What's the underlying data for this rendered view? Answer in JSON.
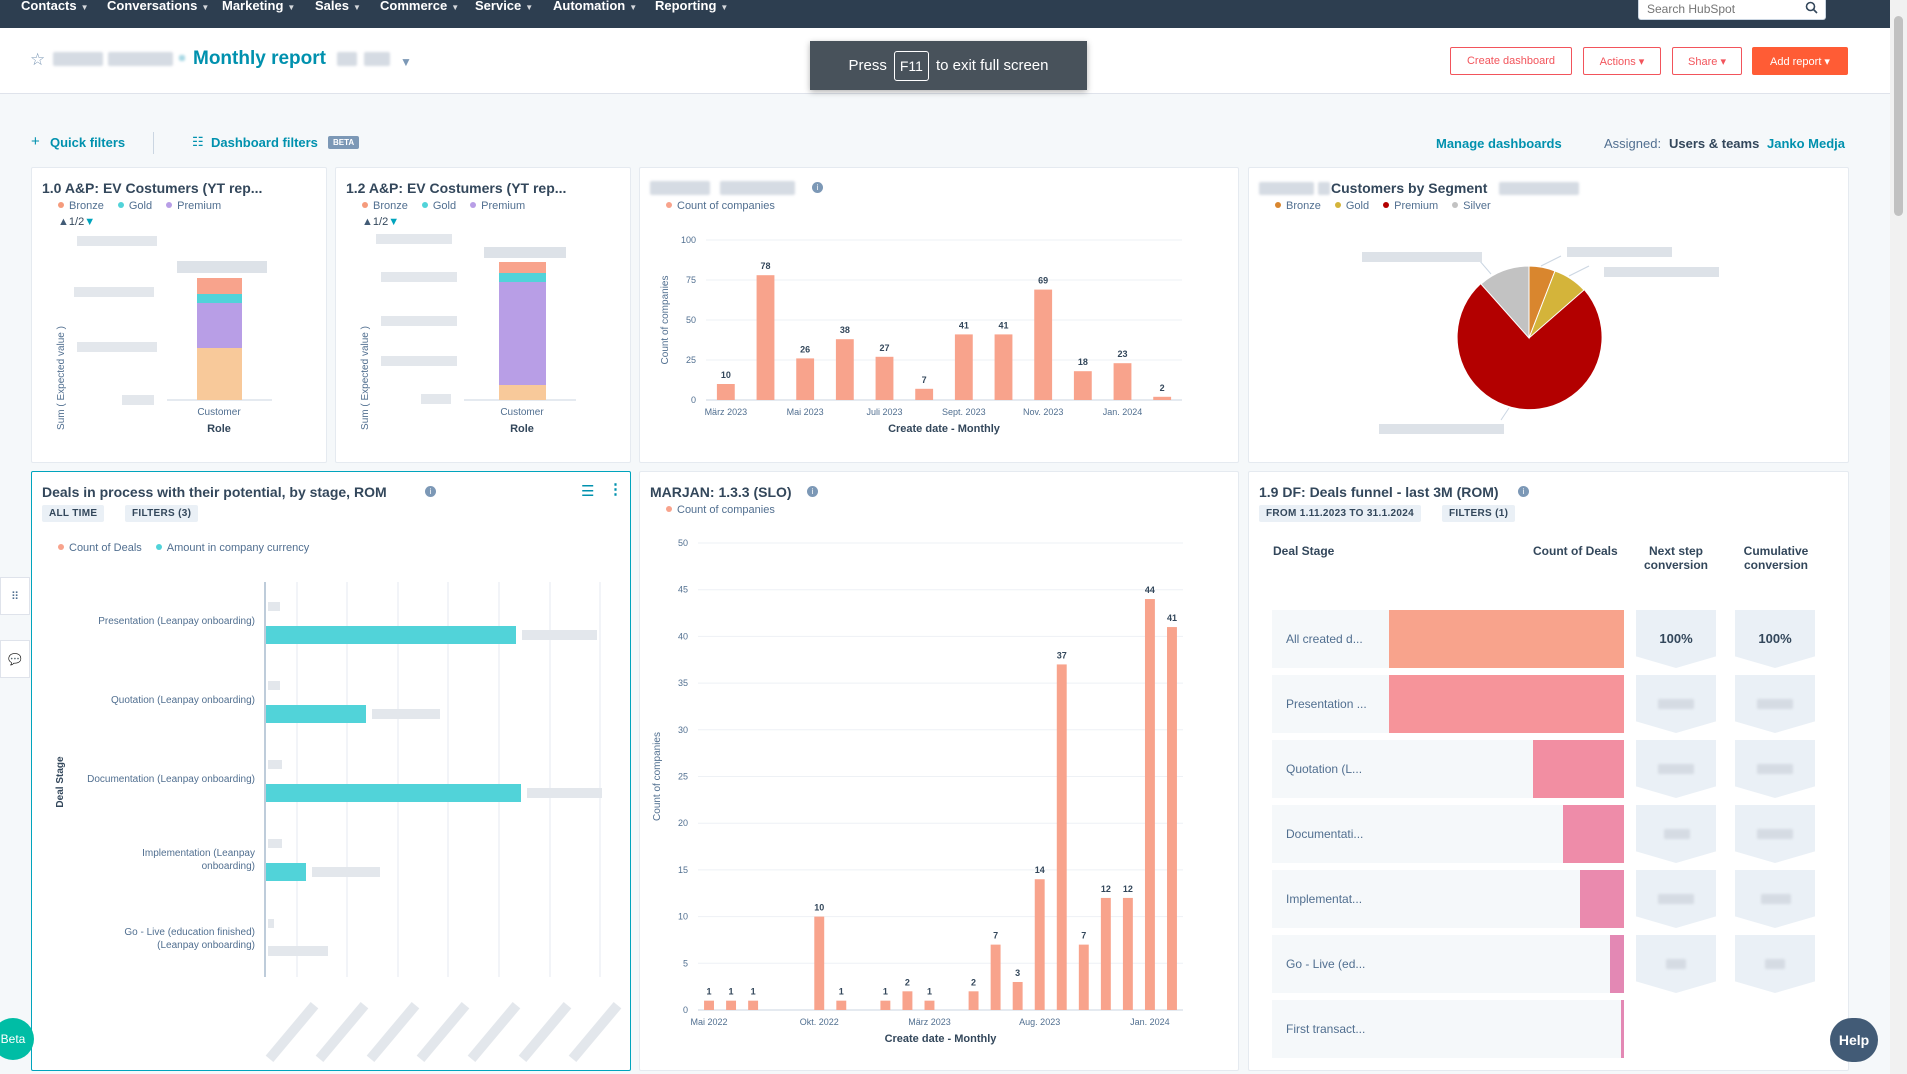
{
  "nav": {
    "items": [
      "Contacts",
      "Conversations",
      "Marketing",
      "Sales",
      "Commerce",
      "Service",
      "Automation",
      "Reporting"
    ],
    "search_placeholder": "Search HubSpot"
  },
  "header": {
    "title": "Monthly report",
    "toast_press": "Press",
    "toast_key": "F11",
    "toast_rest": "to exit full screen",
    "buttons": {
      "create_dashboard": "Create dashboard",
      "actions": "Actions ▾",
      "share": "Share ▾",
      "add_report": "Add report ▾"
    }
  },
  "toolbar": {
    "quick_filters": "Quick filters",
    "dashboard_filters": "Dashboard filters",
    "beta": "BETA",
    "manage_dashboards": "Manage dashboards",
    "assigned_label": "Assigned:",
    "assigned_value": "Users & teams",
    "assigned_user": "Janko Medja"
  },
  "colors": {
    "bronze": "#f59b7c",
    "gold": "#51d3d9",
    "premium": "#b89ee6",
    "orange_bar": "#f8a38c",
    "teal_bar": "#51d3d9",
    "pie_premium": "#b30000",
    "pie_gold": "#d4b43a",
    "pie_bronze": "#d9862e",
    "pie_silver": "#c2c2c2"
  },
  "cards": {
    "c1": {
      "title": "1.0 A&P: EV Costumers (YT rep...",
      "legend": [
        "Bronze",
        "Gold",
        "Premium"
      ],
      "pager": "1/2",
      "ylabel": "Sum ( Expected value )",
      "xtick": "Customer",
      "xlabel": "Role"
    },
    "c2": {
      "title": "1.2 A&P: EV Costumers (YT rep...",
      "legend": [
        "Bronze",
        "Gold",
        "Premium"
      ],
      "pager": "1/2",
      "ylabel": "Sum ( Expected value )",
      "xtick": "Customer",
      "xlabel": "Role"
    },
    "c3": {
      "legend": "Count of companies",
      "xlabel": "Create date - Monthly",
      "ylabel": "Count of companies"
    },
    "c4": {
      "title": "Customers by Segment",
      "legend": [
        "Bronze",
        "Gold",
        "Premium",
        "Silver"
      ]
    },
    "c5": {
      "title": "Deals in process with their potential, by stage, ROM",
      "pill_all_time": "ALL TIME",
      "pill_filters": "FILTERS (3)",
      "legend": [
        "Count of Deals",
        "Amount in company currency"
      ],
      "ylabel": "Deal Stage",
      "stages": [
        "Presentation (Leanpay onboarding)",
        "Quotation (Leanpay onboarding)",
        "Documentation (Leanpay onboarding)",
        "Implementation (Leanpay onboarding)",
        "Go - Live (education finished) (Leanpay onboarding)"
      ]
    },
    "c6": {
      "title": "MARJAN: 1.3.3 (SLO)",
      "legend": "Count of companies",
      "xlabel": "Create date - Monthly",
      "ylabel": "Count of companies"
    },
    "c7": {
      "title": "1.9 DF: Deals funnel - last 3M (ROM)",
      "pill_range": "FROM 1.11.2023 TO 31.1.2024",
      "pill_filters": "FILTERS (1)",
      "col_stage": "Deal Stage",
      "col_count": "Count of Deals",
      "col_next": "Next step conversion",
      "col_cum": "Cumulative conversion",
      "rows": [
        "All created d...",
        "Presentation ...",
        "Quotation (L...",
        "Documentati...",
        "Implementat...",
        "Go - Live (ed...",
        "First transact..."
      ],
      "first_next": "100%",
      "first_cum": "100%"
    }
  },
  "help": "Help",
  "beta_btn": "Beta",
  "chart_data": [
    {
      "type": "bar",
      "title": "",
      "series": [
        {
          "name": "Count of companies",
          "values": [
            10,
            78,
            26,
            38,
            27,
            7,
            41,
            41,
            69,
            18,
            23,
            2
          ]
        }
      ],
      "xticks": [
        "März 2023",
        "Mai 2023",
        "Juli 2023",
        "Sept. 2023",
        "Nov. 2023",
        "Jan. 2024"
      ],
      "xlabel": "Create date - Monthly",
      "ylabel": "Count of companies",
      "ylim": [
        0,
        100
      ],
      "yticks": [
        0,
        25,
        50,
        75,
        100
      ]
    },
    {
      "type": "bar",
      "title": "MARJAN: 1.3.3 (SLO)",
      "series": [
        {
          "name": "Count of companies",
          "values": [
            1,
            1,
            1,
            0,
            0,
            10,
            1,
            0,
            1,
            2,
            1,
            0,
            2,
            7,
            3,
            14,
            37,
            7,
            12,
            12,
            44,
            41
          ]
        }
      ],
      "xticks": [
        "Mai 2022",
        "Okt. 2022",
        "März 2023",
        "Aug. 2023",
        "Jan. 2024"
      ],
      "xlabel": "Create date - Monthly",
      "ylabel": "Count of companies",
      "ylim": [
        0,
        50
      ],
      "yticks": [
        0,
        5,
        10,
        15,
        20,
        25,
        30,
        35,
        40,
        45,
        50
      ]
    }
  ]
}
